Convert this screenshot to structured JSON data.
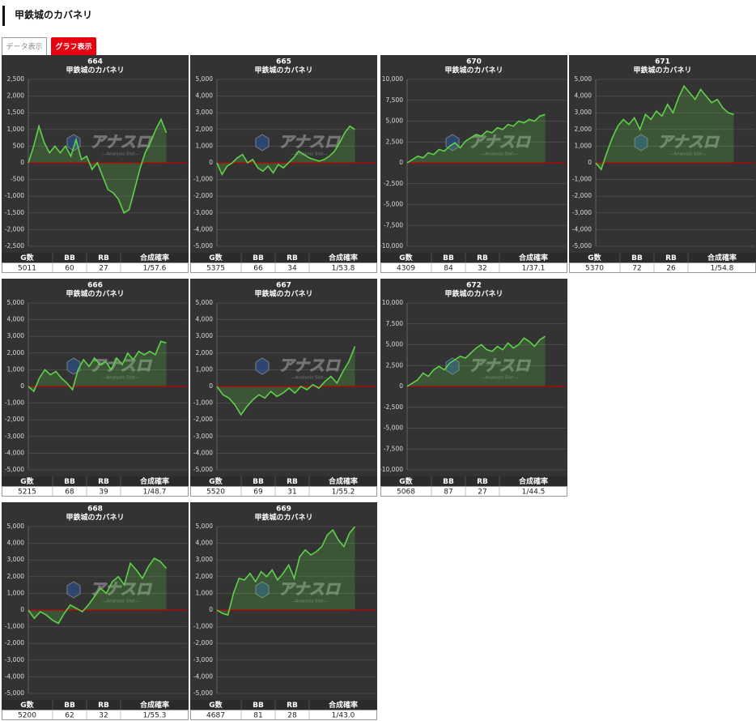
{
  "header": {
    "title": "甲鉄城のカバネリ"
  },
  "tabs": [
    "データ表示",
    "グラフ表示"
  ],
  "watermark": {
    "logo": "アナスロ",
    "tagline": "—Analysis Slot—"
  },
  "table_headers": [
    "G数",
    "BB",
    "RB",
    "合成確率"
  ],
  "chart_data": [
    {
      "type": "area",
      "title": "664",
      "subtitle": "甲鉄城のカバネリ",
      "color": "#5fd14a",
      "grid": true,
      "ylim": [
        -2500,
        2500
      ],
      "yticks": [
        {
          "value": -2500,
          "label": "-2,500"
        },
        {
          "value": -2000,
          "label": "-2,000"
        },
        {
          "value": -1500,
          "label": "-1,500"
        },
        {
          "value": -1000,
          "label": "-1,000"
        },
        -500,
        0,
        500,
        {
          "value": 1000,
          "label": "1,000"
        },
        {
          "value": 1500,
          "label": "1,500"
        },
        {
          "value": 2000,
          "label": "2,000"
        },
        {
          "value": 2500,
          "label": "2,500"
        }
      ],
      "values": [
        0,
        500,
        1100,
        600,
        300,
        500,
        300,
        500,
        200,
        700,
        100,
        200,
        -200,
        0,
        -400,
        -800,
        -900,
        -1100,
        -1500,
        -1400,
        -800,
        -200,
        300,
        600,
        1000,
        1300,
        900
      ]
    },
    {
      "type": "area",
      "title": "665",
      "subtitle": "甲鉄城のカバネリ",
      "color": "#5fd14a",
      "grid": true,
      "ylim": [
        -5000,
        5000
      ],
      "yticks": [
        {
          "value": -5000,
          "label": "-5,000"
        },
        {
          "value": -4000,
          "label": "-4,000"
        },
        {
          "value": -3000,
          "label": "-3,000"
        },
        {
          "value": -2000,
          "label": "-2,000"
        },
        {
          "value": -1000,
          "label": "-1,000"
        },
        0,
        {
          "value": 1000,
          "label": "1,000"
        },
        {
          "value": 2000,
          "label": "2,000"
        },
        {
          "value": 3000,
          "label": "3,000"
        },
        {
          "value": 4000,
          "label": "4,000"
        },
        {
          "value": 5000,
          "label": "5,000"
        }
      ],
      "values": [
        0,
        -700,
        -200,
        0,
        300,
        500,
        0,
        200,
        -300,
        -500,
        -200,
        -600,
        -100,
        -300,
        0,
        300,
        700,
        500,
        300,
        200,
        100,
        200,
        400,
        700,
        1200,
        1800,
        2200,
        2000
      ]
    },
    {
      "type": "area",
      "title": "670",
      "subtitle": "甲鉄城のカバネリ",
      "color": "#5fd14a",
      "grid": true,
      "ylim": [
        -10000,
        10000
      ],
      "yticks": [
        {
          "value": -10000,
          "label": "-10,000"
        },
        {
          "value": -7500,
          "label": "-7,500"
        },
        {
          "value": -5000,
          "label": "-5,000"
        },
        {
          "value": -2500,
          "label": "-2,500"
        },
        0,
        {
          "value": 2500,
          "label": "2,500"
        },
        {
          "value": 5000,
          "label": "5,000"
        },
        {
          "value": 7500,
          "label": "7,500"
        },
        {
          "value": 10000,
          "label": "10,000"
        }
      ],
      "values": [
        0,
        400,
        800,
        600,
        1200,
        1000,
        1600,
        1400,
        2000,
        2400,
        1800,
        2600,
        3000,
        3400,
        3200,
        3800,
        3600,
        4200,
        4000,
        4600,
        4400,
        5000,
        4800,
        5200,
        5000,
        5600,
        5800
      ]
    },
    {
      "type": "area",
      "title": "671",
      "subtitle": "甲鉄城のカバネリ",
      "color": "#5fd14a",
      "grid": true,
      "ylim": [
        -5000,
        5000
      ],
      "yticks": [
        {
          "value": -5000,
          "label": "-5,000"
        },
        {
          "value": -4000,
          "label": "-4,000"
        },
        {
          "value": -3000,
          "label": "-3,000"
        },
        {
          "value": -2000,
          "label": "-2,000"
        },
        {
          "value": -1000,
          "label": "-1,000"
        },
        0,
        {
          "value": 1000,
          "label": "1,000"
        },
        {
          "value": 2000,
          "label": "2,000"
        },
        {
          "value": 3000,
          "label": "3,000"
        },
        {
          "value": 4000,
          "label": "4,000"
        },
        {
          "value": 5000,
          "label": "5,000"
        }
      ],
      "values": [
        0,
        -400,
        600,
        1500,
        2200,
        2600,
        2300,
        2700,
        2000,
        2900,
        2600,
        3100,
        2800,
        3500,
        3000,
        3900,
        4600,
        4200,
        3800,
        4400,
        4000,
        3600,
        3800,
        3300,
        3000,
        2900
      ]
    },
    {
      "type": "area",
      "title": "666",
      "subtitle": "甲鉄城のカバネリ",
      "color": "#5fd14a",
      "grid": true,
      "ylim": [
        -5000,
        5000
      ],
      "yticks": [
        {
          "value": -5000,
          "label": "-5,000"
        },
        {
          "value": -4000,
          "label": "-4,000"
        },
        {
          "value": -3000,
          "label": "-3,000"
        },
        {
          "value": -2000,
          "label": "-2,000"
        },
        {
          "value": -1000,
          "label": "-1,000"
        },
        0,
        {
          "value": 1000,
          "label": "1,000"
        },
        {
          "value": 2000,
          "label": "2,000"
        },
        {
          "value": 3000,
          "label": "3,000"
        },
        {
          "value": 4000,
          "label": "4,000"
        },
        {
          "value": 5000,
          "label": "5,000"
        }
      ],
      "values": [
        0,
        -300,
        500,
        1000,
        700,
        900,
        500,
        200,
        -200,
        1000,
        1600,
        1200,
        1700,
        1300,
        1500,
        1000,
        1700,
        1300,
        2000,
        1600,
        2100,
        1900,
        2100,
        1900,
        2700,
        2600
      ]
    },
    {
      "type": "area",
      "title": "667",
      "subtitle": "甲鉄城のカバネリ",
      "color": "#5fd14a",
      "grid": true,
      "ylim": [
        -5000,
        5000
      ],
      "yticks": [
        {
          "value": -5000,
          "label": "-5,000"
        },
        {
          "value": -4000,
          "label": "-4,000"
        },
        {
          "value": -3000,
          "label": "-3,000"
        },
        {
          "value": -2000,
          "label": "-2,000"
        },
        {
          "value": -1000,
          "label": "-1,000"
        },
        0,
        {
          "value": 1000,
          "label": "1,000"
        },
        {
          "value": 2000,
          "label": "2,000"
        },
        {
          "value": 3000,
          "label": "3,000"
        },
        {
          "value": 4000,
          "label": "4,000"
        },
        {
          "value": 5000,
          "label": "5,000"
        }
      ],
      "values": [
        0,
        -500,
        -700,
        -1100,
        -1700,
        -1200,
        -800,
        -500,
        -700,
        -300,
        -600,
        -400,
        -100,
        -400,
        0,
        -200,
        100,
        -100,
        300,
        600,
        200,
        900,
        1500,
        2400
      ]
    },
    {
      "type": "area",
      "title": "672",
      "subtitle": "甲鉄城のカバネリ",
      "color": "#5fd14a",
      "grid": true,
      "ylim": [
        -10000,
        10000
      ],
      "yticks": [
        {
          "value": -10000,
          "label": "-10,000"
        },
        {
          "value": -7500,
          "label": "-7,500"
        },
        {
          "value": -5000,
          "label": "-5,000"
        },
        {
          "value": -2500,
          "label": "-2,500"
        },
        0,
        {
          "value": 2500,
          "label": "2,500"
        },
        {
          "value": 5000,
          "label": "5,000"
        },
        {
          "value": 7500,
          "label": "7,500"
        },
        {
          "value": 10000,
          "label": "10,000"
        }
      ],
      "values": [
        0,
        400,
        800,
        1600,
        1200,
        2000,
        2400,
        2000,
        2800,
        3200,
        3600,
        3400,
        4000,
        4600,
        5000,
        4400,
        4200,
        4800,
        4400,
        5200,
        4600,
        5000,
        5800,
        5400,
        4800,
        5600,
        6000
      ]
    },
    {
      "type": "area",
      "title": "668",
      "subtitle": "甲鉄城のカバネリ",
      "color": "#5fd14a",
      "grid": true,
      "ylim": [
        -5000,
        5000
      ],
      "yticks": [
        {
          "value": -5000,
          "label": "-5,000"
        },
        {
          "value": -4000,
          "label": "-4,000"
        },
        {
          "value": -3000,
          "label": "-3,000"
        },
        {
          "value": -2000,
          "label": "-2,000"
        },
        {
          "value": -1000,
          "label": "-1,000"
        },
        0,
        {
          "value": 1000,
          "label": "1,000"
        },
        {
          "value": 2000,
          "label": "2,000"
        },
        {
          "value": 3000,
          "label": "3,000"
        },
        {
          "value": 4000,
          "label": "4,000"
        },
        {
          "value": 5000,
          "label": "5,000"
        }
      ],
      "values": [
        0,
        -500,
        -100,
        -300,
        -600,
        -800,
        -200,
        300,
        100,
        -100,
        300,
        800,
        1300,
        1000,
        1700,
        2000,
        1500,
        2800,
        2400,
        1900,
        2600,
        3100,
        2900,
        2500
      ]
    },
    {
      "type": "area",
      "title": "669",
      "subtitle": "甲鉄城のカバネリ",
      "color": "#5fd14a",
      "grid": true,
      "ylim": [
        -5000,
        5000
      ],
      "yticks": [
        {
          "value": -5000,
          "label": "-5,000"
        },
        {
          "value": -4000,
          "label": "-4,000"
        },
        {
          "value": -3000,
          "label": "-3,000"
        },
        {
          "value": -2000,
          "label": "-2,000"
        },
        {
          "value": -1000,
          "label": "-1,000"
        },
        0,
        {
          "value": 1000,
          "label": "1,000"
        },
        {
          "value": 2000,
          "label": "2,000"
        },
        {
          "value": 3000,
          "label": "3,000"
        },
        {
          "value": 4000,
          "label": "4,000"
        },
        {
          "value": 5000,
          "label": "5,000"
        }
      ],
      "values": [
        0,
        -200,
        -300,
        1000,
        1900,
        1800,
        2200,
        1700,
        2300,
        2000,
        2400,
        1800,
        2200,
        2700,
        1900,
        3200,
        3600,
        3300,
        3500,
        3800,
        4500,
        4800,
        4200,
        3800,
        4600,
        5000
      ]
    }
  ],
  "tables": [
    {
      "row": [
        5011,
        60,
        27,
        "1/57.6"
      ]
    },
    {
      "row": [
        5375,
        66,
        34,
        "1/53.8"
      ]
    },
    {
      "row": [
        4309,
        84,
        32,
        "1/37.1"
      ]
    },
    {
      "row": [
        5370,
        72,
        26,
        "1/54.8"
      ]
    },
    {
      "row": [
        5215,
        68,
        39,
        "1/48.7"
      ]
    },
    {
      "row": [
        5520,
        69,
        31,
        "1/55.2"
      ]
    },
    {
      "row": [
        5068,
        87,
        27,
        "1/44.5"
      ]
    },
    {
      "row": [
        5200,
        62,
        32,
        "1/55.3"
      ]
    },
    {
      "row": [
        4687,
        81,
        28,
        "1/43.0"
      ]
    }
  ]
}
